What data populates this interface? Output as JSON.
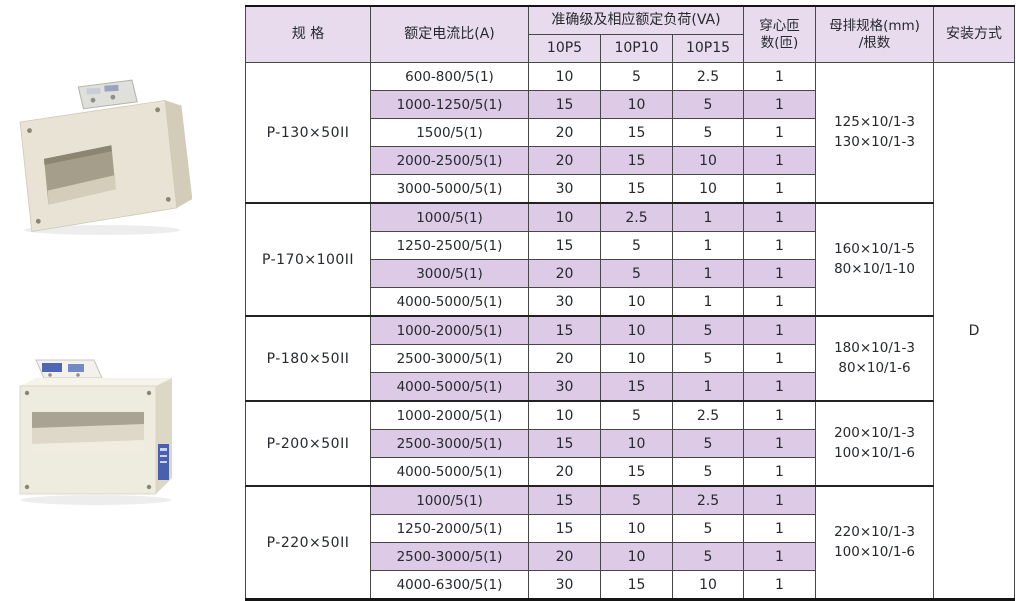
{
  "page": {
    "background": "#ffffff"
  },
  "colors": {
    "header_bg": "#e8dbee",
    "shaded_row_bg": "#dccae6",
    "grid_line": "#474747",
    "heavy_line": "#151515",
    "text": "#26292e",
    "photo_body": "#e9e4d4",
    "photo_label_blue": "#4a5fae"
  },
  "photos": {
    "top": {
      "alt": "busbar current transformer, beige case, angled view"
    },
    "bottom": {
      "alt": "busbar current transformer, white wide case, blue side label"
    }
  },
  "table": {
    "headers": {
      "spec": "规 格",
      "ratio": "额定电流比(A)",
      "accuracy_group": "准确级及相应额定负荷(VA)",
      "accuracy_cols": [
        "10P5",
        "10P10",
        "10P15"
      ],
      "turns": "穿心匝\n数(匝)",
      "busbar": "母排规格(mm)\n/根数",
      "install": "安装方式"
    },
    "install_value": "D",
    "groups": [
      {
        "spec": "P-130×50II",
        "busbar": "125×10/1-3\n130×10/1-3",
        "rows": [
          {
            "ratio": "600-800/5(1)",
            "p5": "10",
            "p10": "5",
            "p15": "2.5",
            "turns": "1",
            "shaded": false
          },
          {
            "ratio": "1000-1250/5(1)",
            "p5": "15",
            "p10": "10",
            "p15": "5",
            "turns": "1",
            "shaded": true
          },
          {
            "ratio": "1500/5(1)",
            "p5": "20",
            "p10": "15",
            "p15": "5",
            "turns": "1",
            "shaded": false
          },
          {
            "ratio": "2000-2500/5(1)",
            "p5": "20",
            "p10": "15",
            "p15": "10",
            "turns": "1",
            "shaded": true
          },
          {
            "ratio": "3000-5000/5(1)",
            "p5": "30",
            "p10": "15",
            "p15": "10",
            "turns": "1",
            "shaded": false
          }
        ]
      },
      {
        "spec": "P-170×100II",
        "busbar": "160×10/1-5\n80×10/1-10",
        "rows": [
          {
            "ratio": "1000/5(1)",
            "p5": "10",
            "p10": "2.5",
            "p15": "1",
            "turns": "1",
            "shaded": true
          },
          {
            "ratio": "1250-2500/5(1)",
            "p5": "15",
            "p10": "5",
            "p15": "1",
            "turns": "1",
            "shaded": false
          },
          {
            "ratio": "3000/5(1)",
            "p5": "20",
            "p10": "5",
            "p15": "1",
            "turns": "1",
            "shaded": true
          },
          {
            "ratio": "4000-5000/5(1)",
            "p5": "30",
            "p10": "10",
            "p15": "1",
            "turns": "1",
            "shaded": false
          }
        ]
      },
      {
        "spec": "P-180×50II",
        "busbar": "180×10/1-3\n80×10/1-6",
        "rows": [
          {
            "ratio": "1000-2000/5(1)",
            "p5": "15",
            "p10": "10",
            "p15": "5",
            "turns": "1",
            "shaded": true
          },
          {
            "ratio": "2500-3000/5(1)",
            "p5": "20",
            "p10": "10",
            "p15": "5",
            "turns": "1",
            "shaded": false
          },
          {
            "ratio": "4000-5000/5(1)",
            "p5": "30",
            "p10": "15",
            "p15": "1",
            "turns": "1",
            "shaded": true
          }
        ]
      },
      {
        "spec": "P-200×50II",
        "busbar": "200×10/1-3\n100×10/1-6",
        "rows": [
          {
            "ratio": "1000-2000/5(1)",
            "p5": "10",
            "p10": "5",
            "p15": "2.5",
            "turns": "1",
            "shaded": false
          },
          {
            "ratio": "2500-3000/5(1)",
            "p5": "15",
            "p10": "10",
            "p15": "5",
            "turns": "1",
            "shaded": true
          },
          {
            "ratio": "4000-5000/5(1)",
            "p5": "20",
            "p10": "15",
            "p15": "5",
            "turns": "1",
            "shaded": false
          }
        ]
      },
      {
        "spec": "P-220×50II",
        "busbar": "220×10/1-3\n100×10/1-6",
        "rows": [
          {
            "ratio": "1000/5(1)",
            "p5": "15",
            "p10": "5",
            "p15": "2.5",
            "turns": "1",
            "shaded": true
          },
          {
            "ratio": "1250-2000/5(1)",
            "p5": "15",
            "p10": "10",
            "p15": "5",
            "turns": "1",
            "shaded": false
          },
          {
            "ratio": "2500-3000/5(1)",
            "p5": "20",
            "p10": "10",
            "p15": "5",
            "turns": "1",
            "shaded": true
          },
          {
            "ratio": "4000-6300/5(1)",
            "p5": "30",
            "p10": "15",
            "p15": "10",
            "turns": "1",
            "shaded": false
          }
        ]
      }
    ]
  }
}
